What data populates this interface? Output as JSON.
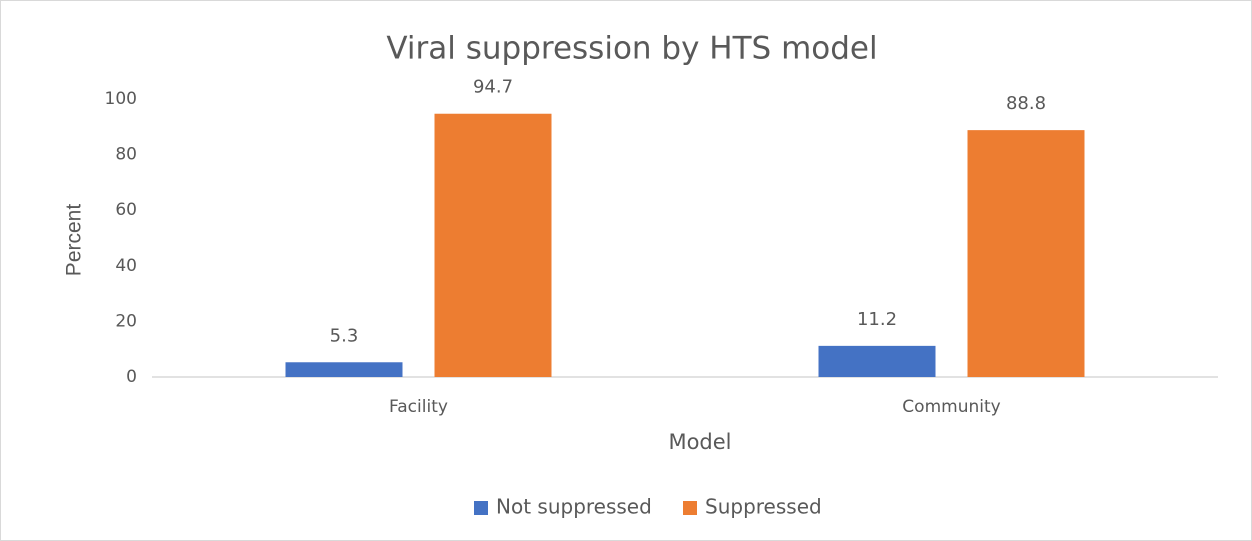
{
  "chart_data": {
    "type": "bar",
    "title": "Viral suppression  by HTS model",
    "x_label": "Model",
    "y_label": "Percent",
    "categories": [
      "Facility",
      "Community"
    ],
    "series": [
      {
        "name": "Not suppressed",
        "color": "#4472c4",
        "values": [
          5.3,
          11.2
        ]
      },
      {
        "name": "Suppressed",
        "color": "#ed7d31",
        "values": [
          94.7,
          88.8
        ]
      }
    ],
    "ylim": [
      0,
      100
    ],
    "yticks": [
      0,
      20,
      40,
      60,
      80,
      100
    ],
    "grid": false,
    "legend": "bottom"
  }
}
